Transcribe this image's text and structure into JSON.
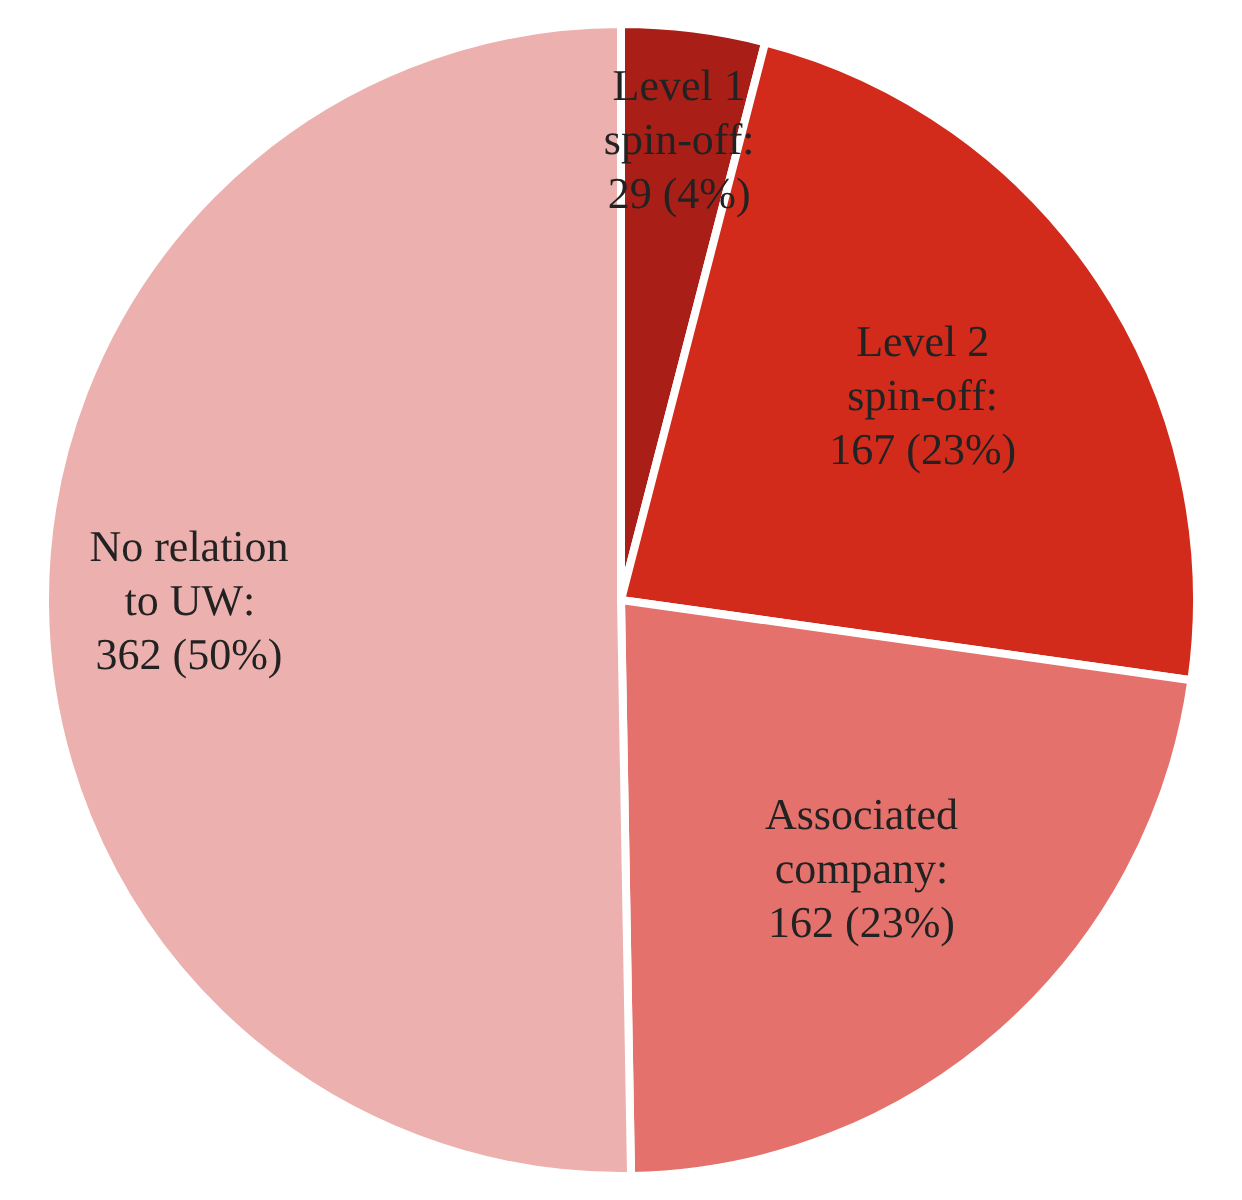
{
  "chart_data": {
    "type": "pie",
    "categories": [
      "Level 1 spin-off",
      "Level 2 spin-off",
      "Associated company",
      "No relation to UW"
    ],
    "values": [
      29,
      167,
      162,
      362
    ],
    "value_labels": [
      ": 29 (4%)",
      ": 167 (23%)",
      ": 162 (23%)",
      ": 362 (50%)"
    ],
    "colors": [
      "#a91f17",
      "#d22b1b",
      "#e4716c",
      "#ecb0ae"
    ],
    "legend": false
  }
}
